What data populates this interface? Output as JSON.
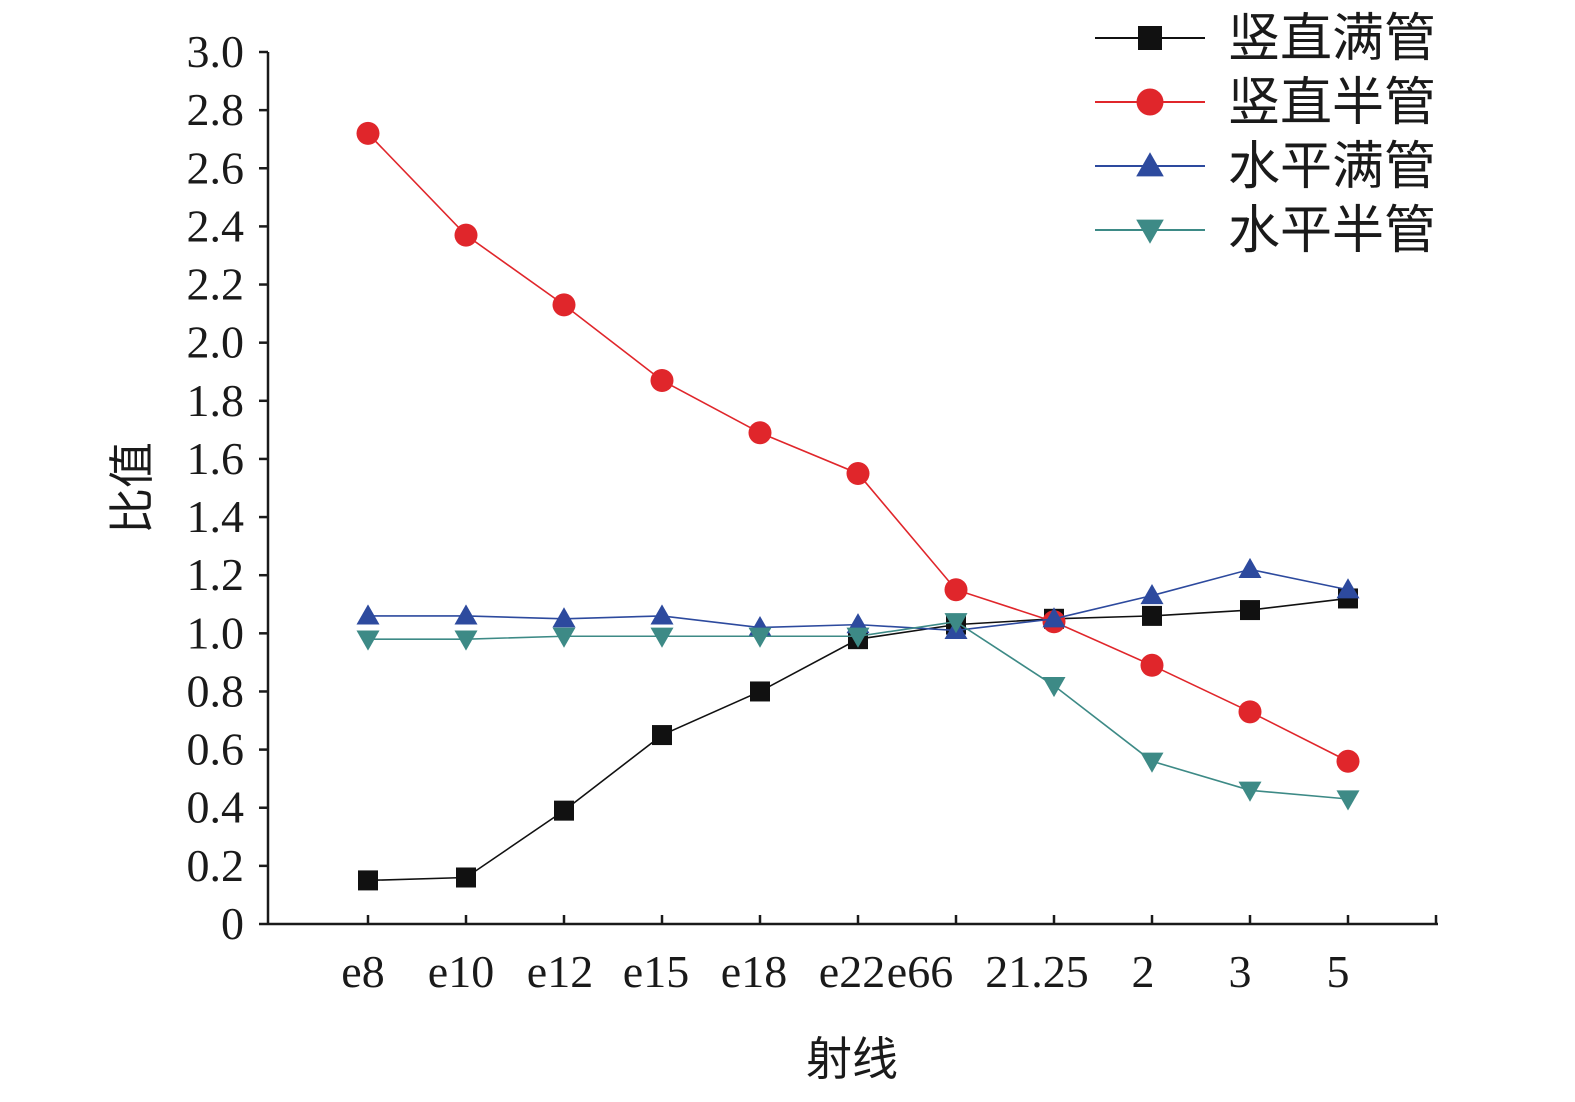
{
  "chart_data": {
    "type": "line",
    "title": "",
    "xlabel": "射线",
    "ylabel": "比值",
    "categories": [
      "e8",
      "e10",
      "e12",
      "e15",
      "e18",
      "e22",
      "e66",
      "21.25",
      "2",
      "3",
      "5"
    ],
    "ylim": [
      0,
      3.0
    ],
    "yticks": [
      0,
      0.2,
      0.4,
      0.6,
      0.8,
      1.0,
      1.2,
      1.4,
      1.6,
      1.8,
      2.0,
      2.2,
      2.4,
      2.6,
      2.8,
      3.0
    ],
    "ytick_labels": [
      "0",
      "0.2",
      "0.4",
      "0.6",
      "0.8",
      "1.0",
      "1.2",
      "1.4",
      "1.6",
      "1.8",
      "2.0",
      "2.2",
      "2.4",
      "2.6",
      "2.8",
      "3.0"
    ],
    "grid": false,
    "legend_position": "top-right",
    "series": [
      {
        "name": "竖直满管",
        "color": "#111111",
        "marker": "square",
        "values": [
          0.15,
          0.16,
          0.39,
          0.65,
          0.8,
          0.98,
          1.03,
          1.05,
          1.06,
          1.08,
          1.12
        ]
      },
      {
        "name": "竖直半管",
        "color": "#e0262b",
        "marker": "circle",
        "values": [
          2.72,
          2.37,
          2.13,
          1.87,
          1.69,
          1.55,
          1.15,
          1.04,
          0.89,
          0.73,
          0.56
        ]
      },
      {
        "name": "水平满管",
        "color": "#2d4a9e",
        "marker": "triangle-up",
        "values": [
          1.06,
          1.06,
          1.05,
          1.06,
          1.02,
          1.03,
          1.01,
          1.05,
          1.13,
          1.22,
          1.15
        ]
      },
      {
        "name": "水平半管",
        "color": "#3d8a86",
        "marker": "triangle-down",
        "values": [
          0.98,
          0.98,
          0.99,
          0.99,
          0.99,
          0.99,
          1.04,
          0.82,
          0.56,
          0.46,
          0.43
        ]
      }
    ]
  }
}
